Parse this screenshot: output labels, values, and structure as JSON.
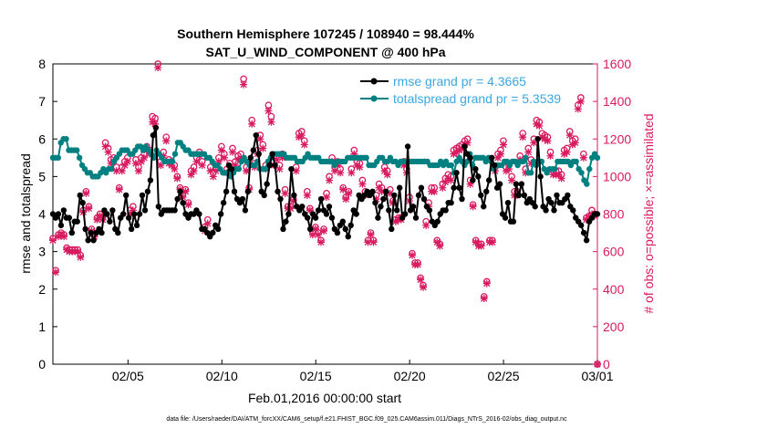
{
  "chart_data": {
    "type": "line",
    "title": "Southern Hemisphere 107245 / 108940 = 98.444%",
    "subtitle": "SAT_U_WIND_COMPONENT @ 400 hPa",
    "xlabel": "Feb.01,2016 00:00:00 start",
    "ylabel_left": "rmse and totalspread",
    "ylabel_right": "# of obs: o=possible; ×=assimilated",
    "footnote": "data file: /Users/raeder/DAI/ATM_forcXX/CAM6_setup/f.e21.FHIST_BGC.f09_025.CAM6assim.011/Diags_NTrS_2016-02/obs_diag_output.nc",
    "xlim": [
      1.0,
      30.0
    ],
    "xticks": [
      {
        "value": 5,
        "label": "02/05"
      },
      {
        "value": 10,
        "label": "02/10"
      },
      {
        "value": 15,
        "label": "02/15"
      },
      {
        "value": 20,
        "label": "02/20"
      },
      {
        "value": 25,
        "label": "02/25"
      },
      {
        "value": 30,
        "label": "03/01"
      }
    ],
    "ylim_left": [
      0,
      8
    ],
    "yticks_left": [
      "0",
      "1",
      "2",
      "3",
      "4",
      "5",
      "6",
      "7",
      "8"
    ],
    "ylim_right": [
      0,
      1600
    ],
    "yticks_right": [
      "0",
      "200",
      "400",
      "600",
      "800",
      "1000",
      "1200",
      "1400",
      "1600"
    ],
    "series": [
      {
        "name": "rmse grand pr = 4.3665",
        "axis": "left",
        "color": "#000000",
        "values": [
          4.0,
          3.9,
          4.0,
          3.7,
          4.1,
          3.9,
          3.9,
          3.5,
          3.8,
          3.8,
          4.5,
          4.3,
          3.6,
          3.3,
          3.5,
          3.3,
          3.5,
          3.6,
          3.5,
          4.1,
          4.0,
          3.8,
          4.1,
          3.6,
          3.5,
          3.9,
          4.0,
          4.5,
          3.9,
          3.6,
          4.0,
          3.7,
          4.0,
          4.5,
          4.1,
          4.6,
          4.9,
          6.1,
          6.3,
          4.2,
          4.0,
          4.1,
          4.1,
          4.1,
          4.1,
          4.1,
          4.4,
          4.6,
          4.3,
          4.0,
          3.9,
          4.0,
          4.0,
          4.1,
          4.0,
          3.6,
          3.6,
          3.5,
          3.4,
          3.5,
          3.7,
          3.6,
          4.0,
          4.3,
          4.6,
          5.3,
          5.2,
          4.6,
          4.4,
          4.3,
          4.4,
          4.1,
          4.6,
          5.5,
          5.7,
          6.1,
          5.6,
          4.6,
          4.5,
          4.8,
          5.3,
          5.6,
          5.3,
          4.6,
          4.4,
          3.6,
          3.8,
          4.0,
          5.2,
          4.5,
          4.2,
          4.1,
          4.2,
          4.0,
          3.9,
          3.6,
          4.0,
          3.9,
          4.1,
          4.4,
          4.1,
          4.0,
          4.2,
          3.9,
          3.6,
          3.5,
          3.7,
          3.8,
          3.6,
          3.4,
          3.7,
          4.1,
          4.0,
          4.5,
          4.4,
          4.5,
          4.6,
          4.5,
          4.6,
          4.3,
          3.9,
          4.2,
          4.4,
          4.6,
          4.1,
          3.6,
          4.5,
          4.1,
          4.7,
          3.9,
          4.0,
          5.8,
          4.1,
          4.2,
          3.9,
          4.5,
          4.7,
          4.4,
          4.2,
          4.1,
          3.8,
          3.7,
          3.8,
          4.0,
          4.1,
          4.1,
          4.3,
          4.3,
          4.7,
          5.1,
          4.7,
          4.4,
          5.8,
          5.6,
          5.5,
          4.9,
          5.2,
          5.0,
          4.5,
          4.2,
          4.6,
          4.9,
          5.5,
          5.3,
          4.7,
          4.8,
          4.0,
          3.9,
          4.3,
          3.8,
          3.8,
          4.8,
          4.5,
          4.8,
          4.5,
          4.3,
          4.4,
          4.3,
          4.2,
          6.0,
          5.0,
          4.2,
          4.1,
          4.4,
          4.3,
          4.1,
          4.5,
          4.3,
          4.3,
          4.4,
          4.5,
          4.2,
          4.1,
          3.9,
          3.8,
          3.7,
          3.5,
          3.3,
          3.8,
          3.9,
          4.0,
          4.0
        ]
      },
      {
        "name": "totalspread grand pr = 5.3539",
        "axis": "left",
        "color": "#008080",
        "values": [
          5.5,
          5.5,
          5.5,
          5.9,
          6.0,
          6.0,
          5.7,
          5.7,
          5.7,
          5.7,
          5.5,
          5.3,
          5.2,
          5.1,
          5.1,
          5.0,
          5.0,
          5.0,
          5.1,
          5.2,
          5.1,
          5.2,
          5.2,
          5.4,
          5.5,
          5.6,
          5.7,
          5.7,
          5.7,
          5.6,
          5.6,
          5.7,
          5.8,
          5.8,
          5.7,
          5.8,
          5.7,
          5.6,
          5.5,
          5.7,
          5.6,
          5.5,
          5.4,
          5.4,
          5.4,
          5.4,
          5.6,
          5.9,
          5.9,
          5.8,
          5.7,
          5.7,
          5.6,
          5.6,
          5.6,
          5.6,
          5.6,
          5.6,
          5.5,
          5.5,
          5.4,
          5.3,
          5.3,
          5.2,
          5.1,
          5.1,
          5.1,
          5.0,
          5.1,
          5.2,
          5.2,
          5.4,
          5.5,
          5.4,
          5.3,
          5.3,
          5.3,
          5.4,
          5.2,
          5.2,
          5.2,
          5.4,
          5.5,
          5.6,
          5.6,
          5.6,
          5.6,
          5.6,
          5.5,
          5.5,
          5.5,
          5.5,
          5.4,
          5.4,
          5.4,
          5.5,
          5.6,
          5.5,
          5.5,
          5.5,
          5.5,
          5.4,
          5.4,
          5.4,
          5.4,
          5.4,
          5.3,
          5.4,
          5.4,
          5.4,
          5.4,
          5.5,
          5.5,
          5.5,
          5.5,
          5.5,
          5.5,
          5.5,
          5.5,
          5.3,
          5.3,
          5.3,
          5.4,
          5.5,
          5.5,
          5.4,
          5.4,
          5.5,
          5.4,
          5.4,
          5.3,
          5.4,
          5.4,
          5.4,
          5.4,
          5.4,
          5.4,
          5.4,
          5.4,
          5.4,
          5.4,
          5.4,
          5.3,
          5.3,
          5.3,
          5.3,
          5.4,
          5.3,
          5.4,
          5.3,
          5.3,
          5.1,
          5.4,
          5.5,
          5.4,
          5.3,
          5.4,
          5.6,
          5.3,
          5.5,
          5.5,
          5.5,
          5.5,
          5.4,
          5.5,
          5.4,
          5.2,
          5.3,
          5.3,
          5.3,
          5.4,
          5.4,
          5.3,
          5.4,
          5.4,
          5.3,
          5.4,
          5.4,
          5.5,
          5.1,
          5.1,
          5.4,
          5.3,
          5.4,
          5.4,
          5.2,
          5.1,
          5.2,
          5.2,
          5.2,
          5.4,
          5.4,
          5.4,
          5.4,
          5.4,
          5.3,
          5.4,
          5.4,
          5.2,
          5.1,
          4.9,
          4.8,
          5.2,
          5.5,
          5.6,
          5.5
        ]
      }
    ],
    "obs_counts": {
      "axis": "right",
      "color": "#d81b60",
      "possible": [
        670,
        500,
        690,
        700,
        690,
        620,
        610,
        610,
        610,
        610,
        580,
        820,
        920,
        840,
        720,
        690,
        780,
        800,
        780,
        1180,
        1150,
        1090,
        1100,
        1050,
        940,
        1050,
        1080,
        1100,
        820,
        840,
        1090,
        1050,
        1100,
        1120,
        1160,
        1140,
        1320,
        1310,
        1600,
        1080,
        1130,
        1210,
        1090,
        1080,
        1060,
        1000,
        940,
        900,
        930,
        860,
        1030,
        1050,
        1100,
        1130,
        1080,
        730,
        770,
        1050,
        1020,
        1050,
        1100,
        1160,
        1120,
        1040,
        1070,
        1150,
        1080,
        1110,
        1120,
        1520,
        1050,
        940,
        1300,
        1070,
        1140,
        1220,
        1170,
        1060,
        1380,
        1320,
        1080,
        1110,
        1060,
        1120,
        930,
        840,
        840,
        880,
        1050,
        1230,
        1240,
        1190,
        920,
        830,
        700,
        730,
        700,
        660,
        720,
        910,
        1000,
        1100,
        1050,
        1080,
        1040,
        940,
        890,
        920,
        1040,
        1140,
        1080,
        1070,
        980,
        920,
        660,
        700,
        660,
        900,
        960,
        940,
        1050,
        1030,
        930,
        870,
        770,
        780,
        780,
        1080,
        1040,
        890,
        590,
        540,
        540,
        460,
        420,
        760,
        860,
        940,
        940,
        660,
        640,
        960,
        990,
        1010,
        1000,
        1140,
        1150,
        1160,
        1170,
        1190,
        1200,
        980,
        850,
        660,
        640,
        640,
        360,
        440,
        660,
        660,
        1050,
        1120,
        1140,
        1190,
        1050,
        1060,
        1000,
        920,
        920,
        1110,
        1230,
        1040,
        1150,
        1090,
        1200,
        1300,
        1290,
        1230,
        1220,
        1210,
        1130,
        1030,
        1030,
        1030,
        1010,
        1140,
        1150,
        1240,
        1190,
        1200,
        1380,
        1420,
        1120,
        780,
        790,
        820,
        800,
        0
      ],
      "assimilated": [
        660,
        490,
        680,
        690,
        680,
        610,
        600,
        600,
        600,
        600,
        570,
        810,
        910,
        830,
        710,
        680,
        770,
        790,
        770,
        1160,
        1130,
        1070,
        1080,
        1030,
        930,
        1030,
        1060,
        1080,
        800,
        820,
        1070,
        1030,
        1080,
        1100,
        1140,
        1120,
        1290,
        1280,
        1580,
        1060,
        1110,
        1190,
        1070,
        1060,
        1040,
        990,
        930,
        890,
        920,
        850,
        1010,
        1030,
        1080,
        1110,
        1060,
        710,
        750,
        1030,
        1000,
        1030,
        1080,
        1140,
        1100,
        1020,
        1050,
        1130,
        1060,
        1090,
        1100,
        1490,
        1030,
        930,
        1280,
        1050,
        1120,
        1200,
        1150,
        1040,
        1350,
        1290,
        1060,
        1090,
        1040,
        1100,
        910,
        830,
        830,
        870,
        1030,
        1210,
        1220,
        1170,
        900,
        820,
        690,
        720,
        690,
        650,
        710,
        890,
        980,
        1080,
        1030,
        1060,
        1020,
        930,
        880,
        910,
        1020,
        1120,
        1060,
        1050,
        960,
        900,
        650,
        690,
        650,
        880,
        940,
        920,
        1030,
        1010,
        910,
        860,
        760,
        770,
        770,
        1060,
        1020,
        870,
        580,
        530,
        530,
        450,
        410,
        740,
        840,
        920,
        920,
        650,
        630,
        940,
        970,
        990,
        980,
        1120,
        1130,
        1140,
        1150,
        1170,
        1180,
        960,
        840,
        650,
        630,
        630,
        350,
        430,
        650,
        650,
        1030,
        1100,
        1120,
        1170,
        1030,
        1040,
        980,
        900,
        900,
        1090,
        1210,
        1020,
        1130,
        1070,
        1180,
        1280,
        1270,
        1210,
        1200,
        1190,
        1110,
        1010,
        1010,
        1010,
        990,
        1120,
        1130,
        1220,
        1170,
        1180,
        1360,
        1400,
        1100,
        770,
        780,
        800,
        790,
        0
      ]
    }
  }
}
